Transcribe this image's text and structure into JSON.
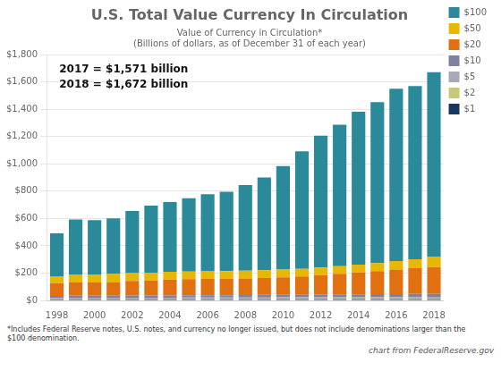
{
  "chart_data": {
    "type": "bar",
    "stacked": true,
    "title": "U.S. Total Value Currency In Circulation",
    "subtitle": [
      "Value of Currency in Circulation*",
      "(Billions of dollars, as of December 31 of each year)"
    ],
    "annotations": [
      "2017 = $1,571 billion",
      "2018 = $1,672 billion"
    ],
    "footnote": "*Includes Federal Reserve notes, U.S. notes, and currency no longer issued, but does not include denominations larger than the\n$100 denomination.",
    "credit": "chart from FederalReserve.gov",
    "categories": [
      "1998",
      null,
      "2000",
      null,
      "2002",
      null,
      "2004",
      null,
      "2006",
      null,
      "2008",
      null,
      "2010",
      null,
      "2012",
      null,
      "2014",
      null,
      "2016",
      null,
      "2018"
    ],
    "series": [
      {
        "name": "$1",
        "color": "#1a3560",
        "values": [
          8.3,
          8.6,
          8.6,
          8.6,
          8.7,
          8.7,
          8.6,
          8.6,
          8.5,
          8.4,
          8.3,
          8.3,
          8.3,
          8.2,
          8.2,
          8.2,
          8.1,
          8.1,
          8.1,
          8.1,
          8.0
        ]
      },
      {
        "name": "$2",
        "color": "#c8c87a",
        "values": [
          1.2,
          1.2,
          1.2,
          1.2,
          1.3,
          1.3,
          1.3,
          1.3,
          1.4,
          1.4,
          1.4,
          1.5,
          1.5,
          1.5,
          1.6,
          1.6,
          1.7,
          1.7,
          1.8,
          1.8,
          1.9
        ]
      },
      {
        "name": "$5",
        "color": "#a8a8b8",
        "values": [
          9.0,
          9.3,
          9.6,
          9.8,
          9.9,
          10.1,
          10.3,
          10.6,
          10.9,
          11.2,
          11.5,
          12.0,
          12.4,
          12.8,
          13.2,
          13.6,
          14.0,
          14.4,
          14.8,
          15.2,
          15.6
        ]
      },
      {
        "name": "$10",
        "color": "#8080a0",
        "values": [
          15.0,
          15.3,
          15.3,
          15.3,
          15.5,
          15.7,
          16.0,
          16.4,
          16.8,
          17.2,
          18.0,
          18.5,
          18.8,
          19.2,
          19.6,
          20.0,
          20.5,
          21.0,
          21.5,
          22.0,
          22.5
        ]
      },
      {
        "name": "$20",
        "color": "#e07010",
        "values": [
          93.0,
          100.0,
          99.0,
          100.0,
          107.0,
          110.0,
          116.0,
          118.0,
          119.0,
          119.0,
          121.0,
          124.0,
          128.0,
          134.0,
          142.0,
          151.0,
          160.0,
          170.0,
          180.0,
          188.0,
          196.0
        ]
      },
      {
        "name": "$50",
        "color": "#e8b800",
        "values": [
          50.0,
          55.0,
          57.0,
          58.0,
          58.0,
          58.0,
          57.0,
          57.0,
          57.0,
          57.0,
          57.0,
          57.0,
          57.0,
          56.0,
          56.0,
          56.0,
          57.0,
          58.0,
          62.0,
          67.0,
          73.0
        ]
      },
      {
        "name": "$100",
        "color": "#2a8a9a",
        "values": [
          314.0,
          404.0,
          398.0,
          408.0,
          455.0,
          491.0,
          511.0,
          537.0,
          565.0,
          581.0,
          627.0,
          680.0,
          758.0,
          860.0,
          966.0,
          1036.0,
          1121.0,
          1179.0,
          1262.0,
          1269.0,
          1355.0
        ]
      }
    ],
    "ylim": [
      0,
      1800
    ],
    "yticks": [
      {
        "value": 0,
        "label": "$0"
      },
      {
        "value": 200,
        "label": "$200"
      },
      {
        "value": 400,
        "label": "$400"
      },
      {
        "value": 600,
        "label": "$600"
      },
      {
        "value": 800,
        "label": "$800"
      },
      {
        "value": 1000,
        "label": "$1,000"
      },
      {
        "value": 1200,
        "label": "$1,200"
      },
      {
        "value": 1400,
        "label": "$1,400"
      },
      {
        "value": 1600,
        "label": "$1,600"
      },
      {
        "value": 1800,
        "label": "$1,800"
      }
    ],
    "grid": true,
    "legend": "right"
  }
}
